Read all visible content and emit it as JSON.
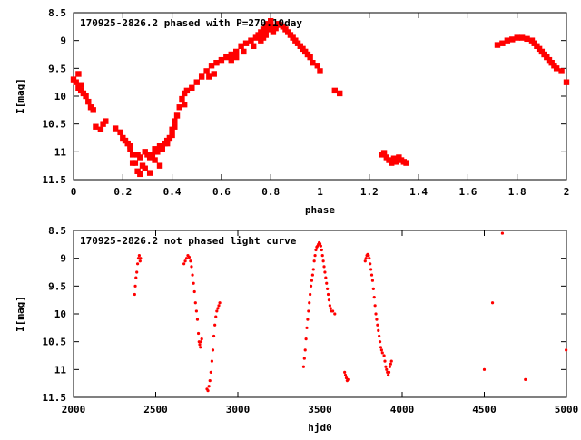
{
  "chart_data": [
    {
      "type": "scatter",
      "title": "170925-2826.2 phased with P=270.10day",
      "xlabel": "phase",
      "ylabel": "I[mag]",
      "xlim": [
        0,
        2
      ],
      "ylim": [
        11.5,
        8.5
      ],
      "y_inverted": true,
      "x_ticks": [
        "0",
        "0.2",
        "0.4",
        "0.6",
        "0.8",
        "1",
        "1.2",
        "1.4",
        "1.6",
        "1.8",
        "2"
      ],
      "y_ticks": [
        "8.5",
        "9",
        "9.5",
        "10",
        "10.5",
        "11",
        "11.5"
      ],
      "color": "#ff0000",
      "marker_size": "large",
      "x": [
        0.0,
        0.01,
        0.02,
        0.03,
        0.04,
        0.05,
        0.06,
        0.08,
        0.09,
        0.11,
        0.13,
        0.17,
        0.19,
        0.2,
        0.22,
        0.23,
        0.24,
        0.25,
        0.26,
        0.27,
        0.29,
        0.3,
        0.31,
        0.32,
        0.33,
        0.34,
        0.35,
        0.36,
        0.37,
        0.38,
        0.39,
        0.4,
        0.41,
        0.42,
        0.43,
        0.44,
        0.45,
        0.46,
        0.48,
        0.5,
        0.52,
        0.54,
        0.56,
        0.58,
        0.6,
        0.62,
        0.64,
        0.66,
        0.68,
        0.7,
        0.72,
        0.74,
        0.75,
        0.76,
        0.77,
        0.78,
        0.79,
        0.8,
        0.81,
        0.82,
        0.83,
        0.84,
        0.85,
        0.86,
        0.87,
        0.88,
        0.89,
        0.9,
        0.91,
        0.92,
        0.93,
        0.94,
        0.95,
        0.96,
        0.97,
        0.99,
        1.0,
        1.06,
        1.08,
        1.25,
        1.26,
        1.27,
        1.28,
        1.29,
        1.3,
        1.31,
        1.32,
        1.33,
        1.34,
        1.35,
        1.72,
        1.74,
        1.76,
        1.78,
        1.8,
        1.82,
        1.84,
        1.86,
        1.87,
        1.88,
        1.89,
        1.9,
        1.91,
        1.92,
        1.93,
        1.94,
        1.95,
        1.96,
        1.98,
        2.0,
        0.26,
        0.28,
        0.31,
        0.33,
        0.35,
        0.27,
        0.29,
        0.24,
        0.21,
        0.23,
        0.12,
        0.07,
        0.03,
        0.02,
        0.79,
        0.8,
        0.81,
        0.78,
        0.77,
        0.76,
        0.73,
        0.64,
        0.66,
        0.69,
        0.55,
        0.57,
        0.45,
        0.41,
        0.4,
        0.38,
        0.34,
        0.36
      ],
      "y": [
        9.7,
        9.75,
        9.85,
        9.9,
        9.95,
        10.0,
        10.1,
        10.25,
        10.55,
        10.6,
        10.45,
        10.58,
        10.65,
        10.75,
        10.85,
        10.95,
        11.05,
        11.2,
        11.35,
        11.1,
        11.0,
        11.05,
        11.1,
        11.05,
        10.95,
        11.0,
        10.9,
        10.95,
        10.85,
        10.8,
        10.75,
        10.7,
        10.55,
        10.35,
        10.2,
        10.05,
        9.95,
        9.9,
        9.85,
        9.75,
        9.65,
        9.55,
        9.45,
        9.4,
        9.35,
        9.3,
        9.25,
        9.2,
        9.1,
        9.05,
        9.0,
        8.95,
        8.9,
        8.85,
        8.8,
        8.75,
        8.7,
        8.65,
        8.75,
        8.78,
        8.7,
        8.72,
        8.75,
        8.8,
        8.85,
        8.9,
        8.95,
        9.0,
        9.05,
        9.1,
        9.15,
        9.2,
        9.25,
        9.3,
        9.4,
        9.45,
        9.55,
        9.9,
        9.95,
        11.05,
        11.02,
        11.1,
        11.15,
        11.2,
        11.12,
        11.18,
        11.1,
        11.15,
        11.18,
        11.2,
        9.08,
        9.05,
        9.0,
        8.98,
        8.95,
        8.95,
        8.97,
        9.0,
        9.05,
        9.1,
        9.15,
        9.2,
        9.25,
        9.3,
        9.35,
        9.4,
        9.45,
        9.5,
        9.55,
        9.75,
        11.05,
        11.25,
        11.38,
        11.15,
        11.25,
        11.4,
        11.3,
        11.2,
        10.8,
        10.9,
        10.5,
        10.2,
        9.8,
        9.6,
        8.8,
        8.7,
        8.85,
        8.9,
        8.95,
        9.0,
        9.1,
        9.35,
        9.3,
        9.2,
        9.65,
        9.6,
        10.15,
        10.45,
        10.6,
        10.85,
        11.0,
        10.95
      ]
    },
    {
      "type": "scatter",
      "title": "170925-2826.2 not phased light curve",
      "xlabel": "hjd0",
      "ylabel": "I[mag]",
      "xlim": [
        2000,
        5000
      ],
      "ylim": [
        11.5,
        8.5
      ],
      "y_inverted": true,
      "x_ticks": [
        "2000",
        "2500",
        "3000",
        "3500",
        "4000",
        "4500",
        "5000"
      ],
      "y_ticks": [
        "8.5",
        "9",
        "9.5",
        "10",
        "10.5",
        "11",
        "11.5"
      ],
      "color": "#ff0000",
      "marker_size": "small",
      "x": [
        2372,
        2376,
        2380,
        2385,
        2390,
        2395,
        2400,
        2405,
        2408,
        2672,
        2680,
        2688,
        2696,
        2704,
        2712,
        2718,
        2724,
        2730,
        2736,
        2742,
        2748,
        2754,
        2760,
        2764,
        2768,
        2772,
        2776,
        2780,
        2812,
        2818,
        2824,
        2830,
        2836,
        2842,
        2848,
        2854,
        2860,
        2866,
        2872,
        2878,
        2884,
        2890,
        3400,
        3405,
        3410,
        3415,
        3420,
        3425,
        3430,
        3435,
        3440,
        3445,
        3450,
        3455,
        3460,
        3465,
        3470,
        3475,
        3480,
        3485,
        3490,
        3495,
        3500,
        3505,
        3510,
        3515,
        3520,
        3525,
        3530,
        3535,
        3540,
        3545,
        3550,
        3555,
        3560,
        3565,
        3570,
        3578,
        3590,
        3650,
        3655,
        3660,
        3665,
        3670,
        3775,
        3780,
        3785,
        3790,
        3795,
        3800,
        3805,
        3810,
        3815,
        3820,
        3825,
        3830,
        3835,
        3840,
        3845,
        3850,
        3855,
        3860,
        3865,
        3870,
        3875,
        3880,
        3890,
        3895,
        3900,
        3905,
        3910,
        3915,
        3920,
        3925,
        3930,
        3935,
        4500,
        4550,
        4610,
        4750,
        4998
      ],
      "y": [
        9.65,
        9.5,
        9.35,
        9.25,
        9.1,
        9.0,
        8.95,
        9.05,
        9.0,
        9.1,
        9.05,
        9.0,
        8.95,
        8.98,
        9.05,
        9.15,
        9.3,
        9.45,
        9.6,
        9.8,
        9.95,
        10.1,
        10.35,
        10.5,
        10.55,
        10.6,
        10.5,
        10.45,
        11.35,
        11.38,
        11.3,
        11.2,
        11.05,
        10.85,
        10.65,
        10.4,
        10.2,
        10.05,
        9.95,
        9.9,
        9.85,
        9.8,
        10.95,
        10.8,
        10.65,
        10.45,
        10.25,
        10.1,
        9.95,
        9.8,
        9.65,
        9.5,
        9.4,
        9.3,
        9.2,
        9.05,
        8.95,
        8.85,
        8.8,
        8.78,
        8.75,
        8.72,
        8.74,
        8.78,
        8.85,
        8.95,
        9.05,
        9.15,
        9.25,
        9.35,
        9.45,
        9.55,
        9.65,
        9.75,
        9.85,
        9.9,
        9.95,
        9.95,
        10.0,
        11.05,
        11.1,
        11.15,
        11.2,
        11.18,
        9.05,
        9.0,
        8.95,
        8.93,
        8.95,
        9.0,
        9.1,
        9.2,
        9.3,
        9.4,
        9.55,
        9.7,
        9.85,
        10.0,
        10.1,
        10.2,
        10.3,
        10.4,
        10.5,
        10.6,
        10.65,
        10.7,
        10.75,
        10.85,
        10.95,
        11.0,
        11.05,
        11.1,
        11.05,
        10.95,
        10.9,
        10.85,
        11.0,
        9.8,
        8.55,
        11.18,
        10.65
      ]
    }
  ]
}
